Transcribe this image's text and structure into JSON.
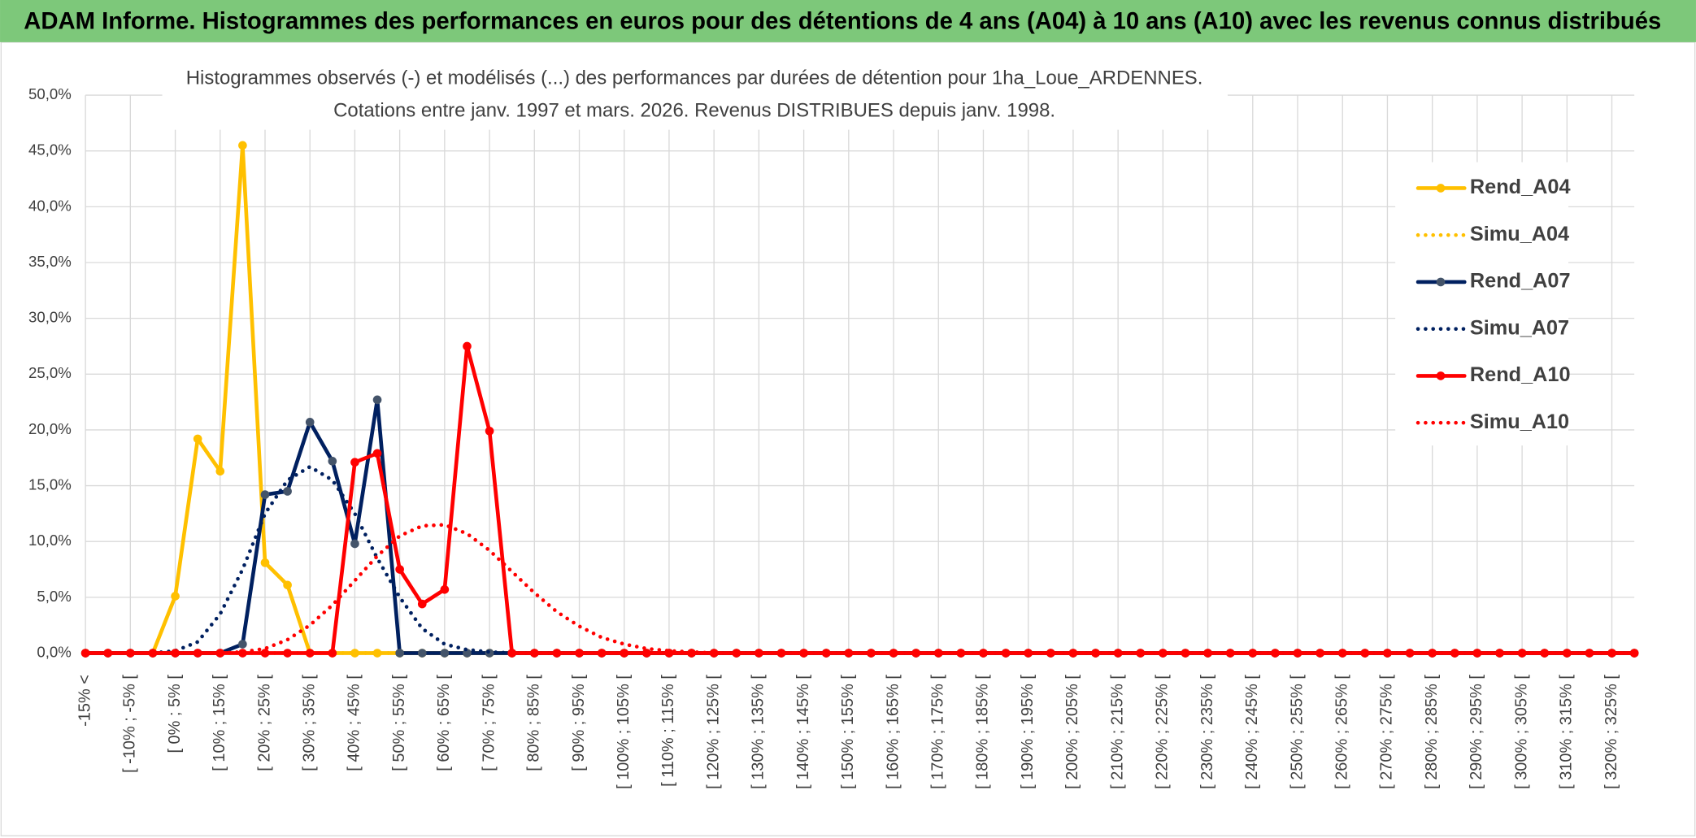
{
  "header": {
    "title": "ADAM Informe. Histogrammes des performances en euros pour des détentions de 4 ans (A04) à 10 ans (A10) avec les revenus connus distribués"
  },
  "chart_data": {
    "type": "line",
    "title": [
      "Histogrammes observés (-) et modélisés (...) des performances par durées de détention pour 1ha_Loue_ARDENNES.",
      "Cotations entre janv. 1997 et mars. 2026. Revenus DISTRIBUES depuis janv. 1998."
    ],
    "categories": [
      "-15% <",
      null,
      "[ -10% ; -5% [",
      null,
      "[ 0% ; 5% [",
      null,
      "[ 10% ; 15% [",
      null,
      "[ 20% ; 25% [",
      null,
      "[ 30% ; 35% [",
      null,
      "[ 40% ; 45% [",
      null,
      "[ 50% ; 55% [",
      null,
      "[ 60% ; 65% [",
      null,
      "[ 70% ; 75% [",
      null,
      "[ 80% ; 85% [",
      null,
      "[ 90% ; 95% [",
      null,
      "[ 100% ; 105% [",
      null,
      "[ 110% ; 115% [",
      null,
      "[ 120% ; 125% [",
      null,
      "[ 130% ; 135% [",
      null,
      "[ 140% ; 145% [",
      null,
      "[ 150% ; 155% [",
      null,
      "[ 160% ; 165% [",
      null,
      "[ 170% ; 175% [",
      null,
      "[ 180% ; 185% [",
      null,
      "[ 190% ; 195% [",
      null,
      "[ 200% ; 205% [",
      null,
      "[ 210% ; 215% [",
      null,
      "[ 220% ; 225% [",
      null,
      "[ 230% ; 235% [",
      null,
      "[ 240% ; 245% [",
      null,
      "[ 250% ; 255% [",
      null,
      "[ 260% ; 265% [",
      null,
      "[ 270% ; 275% [",
      null,
      "[ 280% ; 285% [",
      null,
      "[ 290% ; 295% [",
      null,
      "[ 300% ; 305% [",
      null,
      "[ 310% ; 315% [",
      null,
      "[ 320% ; 325% [",
      null
    ],
    "series": [
      {
        "name": "Rend_A04",
        "color": "#ffc000",
        "marker_color": "#ffc000",
        "line_style": "solid",
        "values": [
          0,
          0,
          0,
          0,
          5.1,
          19.2,
          16.3,
          45.5,
          8.1,
          6.1,
          0,
          0,
          0,
          0,
          0,
          0,
          0,
          0,
          0,
          0,
          0,
          0,
          0,
          0,
          0,
          0,
          0,
          0,
          0,
          0,
          0,
          0,
          0,
          0,
          0,
          0,
          0,
          0,
          0,
          0,
          0,
          0,
          0,
          0,
          0,
          0,
          0,
          0,
          0,
          0,
          0,
          0,
          0,
          0,
          0,
          0,
          0,
          0,
          0,
          0,
          0,
          0,
          0,
          0,
          0,
          0,
          0,
          0,
          0,
          0
        ]
      },
      {
        "name": "Simu_A04",
        "color": "#ffc000",
        "line_style": "dotted",
        "values": [
          0,
          0,
          0,
          0,
          0,
          0,
          0,
          0,
          0,
          0,
          0,
          0,
          0,
          0,
          0,
          0,
          0,
          0,
          0,
          0,
          0,
          0,
          0,
          0,
          0,
          0,
          0,
          0,
          0,
          0,
          0,
          0,
          0,
          0,
          0,
          0,
          0,
          0,
          0,
          0,
          0,
          0,
          0,
          0,
          0,
          0,
          0,
          0,
          0,
          0,
          0,
          0,
          0,
          0,
          0,
          0,
          0,
          0,
          0,
          0,
          0,
          0,
          0,
          0,
          0,
          0,
          0,
          0,
          0,
          0
        ]
      },
      {
        "name": "Rend_A07",
        "color": "#002060",
        "marker_color": "#44546a",
        "line_style": "solid",
        "values": [
          0,
          0,
          0,
          0,
          0,
          0,
          0,
          0.8,
          14.2,
          14.5,
          20.7,
          17.2,
          9.8,
          22.7,
          0,
          0,
          0,
          0,
          0,
          0,
          0,
          0,
          0,
          0,
          0,
          0,
          0,
          0,
          0,
          0,
          0,
          0,
          0,
          0,
          0,
          0,
          0,
          0,
          0,
          0,
          0,
          0,
          0,
          0,
          0,
          0,
          0,
          0,
          0,
          0,
          0,
          0,
          0,
          0,
          0,
          0,
          0,
          0,
          0,
          0,
          0,
          0,
          0,
          0,
          0,
          0,
          0,
          0,
          0,
          0
        ]
      },
      {
        "name": "Simu_A07",
        "color": "#002060",
        "line_style": "dotted",
        "values": [
          0,
          0,
          0,
          0,
          0.2,
          1,
          3.5,
          7.5,
          12.5,
          15.5,
          16.7,
          15.5,
          12.5,
          8.5,
          5,
          2.2,
          0.8,
          0.3,
          0.1,
          0,
          0,
          0,
          0,
          0,
          0,
          0,
          0,
          0,
          0,
          0,
          0,
          0,
          0,
          0,
          0,
          0,
          0,
          0,
          0,
          0,
          0,
          0,
          0,
          0,
          0,
          0,
          0,
          0,
          0,
          0,
          0,
          0,
          0,
          0,
          0,
          0,
          0,
          0,
          0,
          0,
          0,
          0,
          0,
          0,
          0,
          0,
          0,
          0,
          0,
          0
        ]
      },
      {
        "name": "Rend_A10",
        "color": "#ff0000",
        "marker_color": "#ff0000",
        "line_style": "solid",
        "values": [
          0,
          0,
          0,
          0,
          0,
          0,
          0,
          0,
          0,
          0,
          0,
          0,
          17.1,
          17.9,
          7.5,
          4.4,
          5.7,
          27.5,
          19.9,
          0,
          0,
          0,
          0,
          0,
          0,
          0,
          0,
          0,
          0,
          0,
          0,
          0,
          0,
          0,
          0,
          0,
          0,
          0,
          0,
          0,
          0,
          0,
          0,
          0,
          0,
          0,
          0,
          0,
          0,
          0,
          0,
          0,
          0,
          0,
          0,
          0,
          0,
          0,
          0,
          0,
          0,
          0,
          0,
          0,
          0,
          0,
          0,
          0,
          0,
          0
        ]
      },
      {
        "name": "Simu_A10",
        "color": "#ff0000",
        "line_style": "dotted",
        "values": [
          0,
          0,
          0,
          0,
          0,
          0,
          0,
          0.1,
          0.4,
          1.2,
          2.5,
          4.3,
          6.5,
          8.7,
          10.5,
          11.4,
          11.5,
          10.7,
          9.2,
          7.3,
          5.4,
          3.7,
          2.4,
          1.4,
          0.8,
          0.4,
          0.2,
          0.1,
          0,
          0,
          0,
          0,
          0,
          0,
          0,
          0,
          0,
          0,
          0,
          0,
          0,
          0,
          0,
          0,
          0,
          0,
          0,
          0,
          0,
          0,
          0,
          0,
          0,
          0,
          0,
          0,
          0,
          0,
          0,
          0,
          0,
          0,
          0,
          0,
          0,
          0,
          0,
          0,
          0,
          0
        ]
      }
    ],
    "ylim": [
      0,
      50
    ],
    "yticks": [
      {
        "value": 0,
        "label": "0,0%"
      },
      {
        "value": 5,
        "label": "5,0%"
      },
      {
        "value": 10,
        "label": "10,0%"
      },
      {
        "value": 15,
        "label": "15,0%"
      },
      {
        "value": 20,
        "label": "20,0%"
      },
      {
        "value": 25,
        "label": "25,0%"
      },
      {
        "value": 30,
        "label": "30,0%"
      },
      {
        "value": 35,
        "label": "35,0%"
      },
      {
        "value": 40,
        "label": "40,0%"
      },
      {
        "value": 45,
        "label": "45,0%"
      },
      {
        "value": 50,
        "label": "50,0%"
      }
    ],
    "grid": true,
    "legend": "right"
  }
}
